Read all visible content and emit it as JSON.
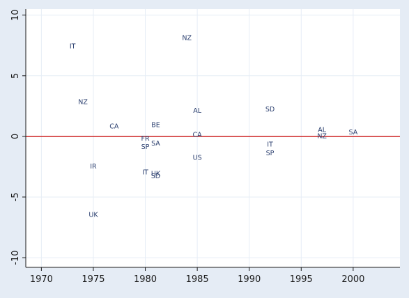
{
  "chart_data": {
    "type": "scatter",
    "title": "",
    "xlabel": "",
    "ylabel": "",
    "xlim": [
      1968.5,
      2004.5
    ],
    "ylim": [
      -10.8,
      10.5
    ],
    "x_ticks": [
      1970,
      1975,
      1980,
      1985,
      1990,
      1995,
      2000
    ],
    "y_ticks": [
      -10,
      -5,
      0,
      5,
      10
    ],
    "grid": true,
    "reference_line": {
      "y": 0,
      "color": "#cc1f1f"
    },
    "colors": {
      "plot_background": "#ffffff",
      "grid": "#e6edf6",
      "marker_label": "#2a3e6e",
      "axis": "#1a1a1a"
    },
    "points": [
      {
        "label": "IT",
        "x": 1973,
        "y": 7.4
      },
      {
        "label": "NZ",
        "x": 1984,
        "y": 8.1
      },
      {
        "label": "NZ",
        "x": 1974,
        "y": 2.8
      },
      {
        "label": "CA",
        "x": 1977,
        "y": 0.8
      },
      {
        "label": "BE",
        "x": 1981,
        "y": 0.9
      },
      {
        "label": "AL",
        "x": 1985,
        "y": 2.1
      },
      {
        "label": "SD",
        "x": 1992,
        "y": 2.2
      },
      {
        "label": "CA",
        "x": 1985,
        "y": 0.1
      },
      {
        "label": "FR",
        "x": 1980,
        "y": -0.2
      },
      {
        "label": "SA",
        "x": 1981,
        "y": -0.6
      },
      {
        "label": "SP",
        "x": 1980,
        "y": -0.9
      },
      {
        "label": "IT",
        "x": 1992,
        "y": -0.7
      },
      {
        "label": "SP",
        "x": 1992,
        "y": -1.4
      },
      {
        "label": "US",
        "x": 1985,
        "y": -1.8
      },
      {
        "label": "IR",
        "x": 1975,
        "y": -2.5
      },
      {
        "label": "IT",
        "x": 1980,
        "y": -3.0
      },
      {
        "label": "UK",
        "x": 1981,
        "y": -3.1
      },
      {
        "label": "SD",
        "x": 1981,
        "y": -3.3
      },
      {
        "label": "AL",
        "x": 1997,
        "y": 0.5
      },
      {
        "label": "NZ",
        "x": 1997,
        "y": 0.0
      },
      {
        "label": "SA",
        "x": 2000,
        "y": 0.3
      },
      {
        "label": "UK",
        "x": 1975,
        "y": -6.5
      }
    ]
  }
}
